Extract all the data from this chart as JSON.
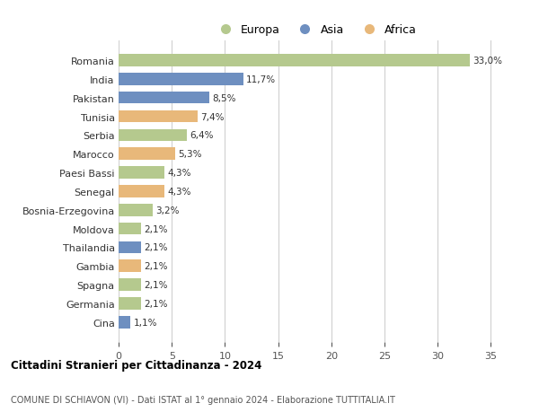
{
  "countries": [
    "Romania",
    "India",
    "Pakistan",
    "Tunisia",
    "Serbia",
    "Marocco",
    "Paesi Bassi",
    "Senegal",
    "Bosnia-Erzegovina",
    "Moldova",
    "Thailandia",
    "Gambia",
    "Spagna",
    "Germania",
    "Cina"
  ],
  "values": [
    33.0,
    11.7,
    8.5,
    7.4,
    6.4,
    5.3,
    4.3,
    4.3,
    3.2,
    2.1,
    2.1,
    2.1,
    2.1,
    2.1,
    1.1
  ],
  "labels": [
    "33,0%",
    "11,7%",
    "8,5%",
    "7,4%",
    "6,4%",
    "5,3%",
    "4,3%",
    "4,3%",
    "3,2%",
    "2,1%",
    "2,1%",
    "2,1%",
    "2,1%",
    "2,1%",
    "1,1%"
  ],
  "continents": [
    "Europa",
    "Asia",
    "Asia",
    "Africa",
    "Europa",
    "Africa",
    "Europa",
    "Africa",
    "Europa",
    "Europa",
    "Asia",
    "Africa",
    "Europa",
    "Europa",
    "Asia"
  ],
  "continent_colors": {
    "Europa": "#b5c98e",
    "Asia": "#6e8fc0",
    "Africa": "#e8b87a"
  },
  "legend_labels": [
    "Europa",
    "Asia",
    "Africa"
  ],
  "legend_colors": [
    "#b5c98e",
    "#6e8fc0",
    "#e8b87a"
  ],
  "title1": "Cittadini Stranieri per Cittadinanza - 2024",
  "title2": "COMUNE DI SCHIAVON (VI) - Dati ISTAT al 1° gennaio 2024 - Elaborazione TUTTITALIA.IT",
  "xlim": [
    0,
    37
  ],
  "xticks": [
    0,
    5,
    10,
    15,
    20,
    25,
    30,
    35
  ],
  "background_color": "#ffffff",
  "grid_color": "#d0d0d0",
  "bar_height": 0.65
}
